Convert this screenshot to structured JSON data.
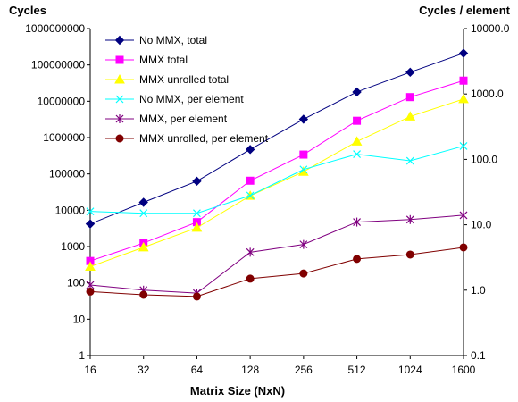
{
  "chart_data": {
    "type": "line",
    "title": "",
    "ylabel_left": "Cycles",
    "ylabel_right": "Cycles / element",
    "xlabel": "Matrix Size (NxN)",
    "x_scale": "categorical",
    "y_scale_left": "log10",
    "y_scale_right": "log10",
    "categories": [
      "16",
      "32",
      "64",
      "128",
      "256",
      "512",
      "1024",
      "1600"
    ],
    "ylim_left": [
      1,
      1000000000
    ],
    "ylim_right": [
      0.1,
      10000
    ],
    "left_ticks": [
      "1",
      "10",
      "100",
      "1000",
      "10000",
      "100000",
      "1000000",
      "10000000",
      "100000000",
      "1000000000"
    ],
    "right_ticks": [
      "0.1",
      "1.0",
      "10.0",
      "100.0",
      "1000.0",
      "10000.0"
    ],
    "legend_position": "top-left",
    "grid": false,
    "series": [
      {
        "name": "No MMX, total",
        "axis": "left",
        "color": "#000080",
        "marker": "diamond",
        "values": [
          4200,
          16500,
          63000,
          470000,
          3200000,
          18000000,
          63000000,
          210000000
        ]
      },
      {
        "name": "MMX total",
        "axis": "left",
        "color": "#ff00ff",
        "marker": "square",
        "values": [
          400,
          1250,
          4700,
          65000,
          340000,
          2900000,
          13000000,
          37000000
        ]
      },
      {
        "name": "MMX unrolled total",
        "axis": "left",
        "color": "#ffff00",
        "marker": "triangle",
        "values": [
          280,
          950,
          3300,
          25000,
          115000,
          780000,
          3800000,
          11500000
        ]
      },
      {
        "name": "No MMX, per element",
        "axis": "right",
        "color": "#00ffff",
        "marker": "x",
        "values": [
          16,
          15,
          15,
          28,
          70,
          120,
          95,
          160
        ]
      },
      {
        "name": "MMX, per element",
        "axis": "right",
        "color": "#800080",
        "marker": "star",
        "values": [
          1.2,
          1.0,
          0.9,
          3.8,
          5.0,
          11,
          12,
          14
        ]
      },
      {
        "name": "MMX unrolled, per element",
        "axis": "right",
        "color": "#800000",
        "marker": "circle",
        "values": [
          0.95,
          0.85,
          0.8,
          1.5,
          1.8,
          3.0,
          3.5,
          4.5
        ]
      }
    ]
  }
}
